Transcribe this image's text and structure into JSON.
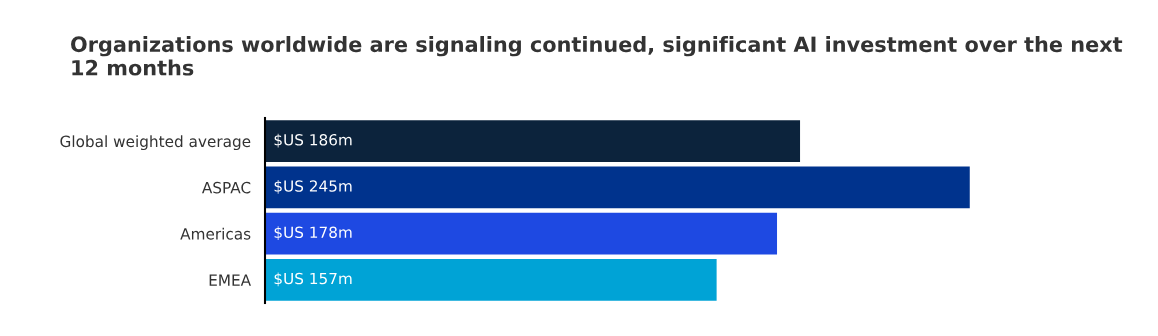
{
  "chart_data": {
    "type": "bar",
    "orientation": "horizontal",
    "title": "Organizations worldwide are signaling continued, significant AI investment over the next 12 months",
    "categories": [
      "Global weighted average",
      "ASPAC",
      "Americas",
      "EMEA"
    ],
    "values": [
      186000000,
      245000000,
      178000000,
      157000000
    ],
    "colors": [
      "#0c233c",
      "#00338d",
      "#1e49e2",
      "#00a3d6"
    ],
    "value_labels": [
      "$US 186m",
      "$US 245m",
      "$US 178m",
      "$US 157m"
    ],
    "tick_labels": "y",
    "grid": false,
    "legend": false
  }
}
